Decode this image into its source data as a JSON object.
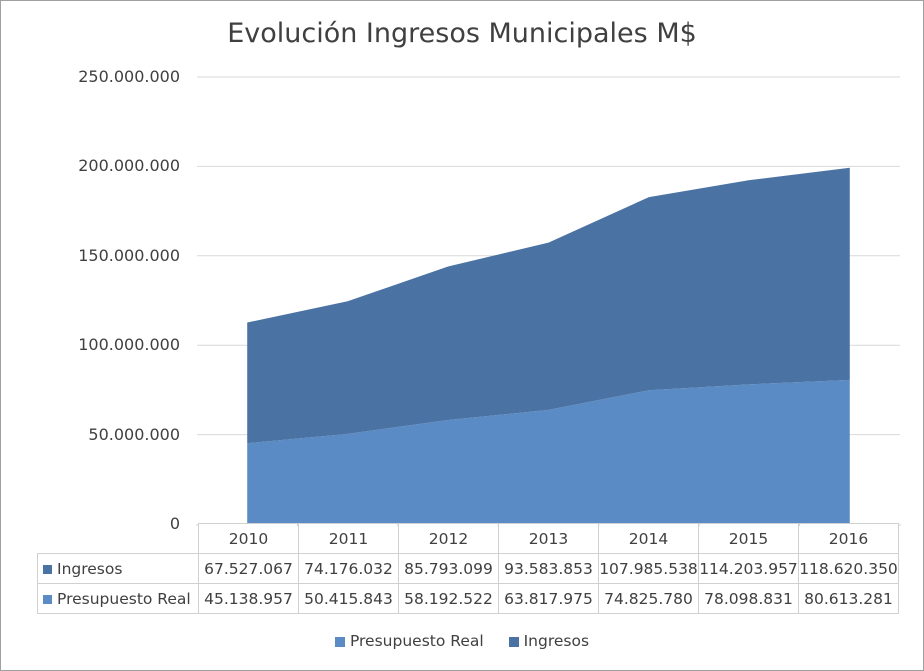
{
  "chart_data": {
    "type": "area",
    "stacked": true,
    "title": "Evolución Ingresos Municipales M$",
    "categories": [
      "2010",
      "2011",
      "2012",
      "2013",
      "2014",
      "2015",
      "2016"
    ],
    "ylim": [
      0,
      250000000
    ],
    "yticks": [
      0,
      50000000,
      100000000,
      150000000,
      200000000,
      250000000
    ],
    "ytick_labels": [
      "0",
      "50.000.000",
      "100.000.000",
      "150.000.000",
      "200.000.000",
      "250.000.000"
    ],
    "grid": true,
    "legend_position": "bottom",
    "series": [
      {
        "name": "Presupuesto Real",
        "color": "#5b8bc4",
        "values": [
          45138957,
          50415843,
          58192522,
          63817975,
          74825780,
          78098831,
          80613281
        ],
        "labels": [
          "45.138.957",
          "50.415.843",
          "58.192.522",
          "63.817.975",
          "74.825.780",
          "78.098.831",
          "80.613.281"
        ]
      },
      {
        "name": "Ingresos",
        "color": "#4a72a3",
        "values": [
          67527067,
          74176032,
          85793099,
          93583853,
          107985538,
          114203957,
          118620350
        ],
        "labels": [
          "67.527.067",
          "74.176.032",
          "85.793.099",
          "93.583.853",
          "107.985.538",
          "114.203.957",
          "118.620.350"
        ]
      }
    ],
    "table_rows": [
      "Ingresos",
      "Presupuesto Real"
    ],
    "legend_order": [
      "Presupuesto Real",
      "Ingresos"
    ]
  }
}
